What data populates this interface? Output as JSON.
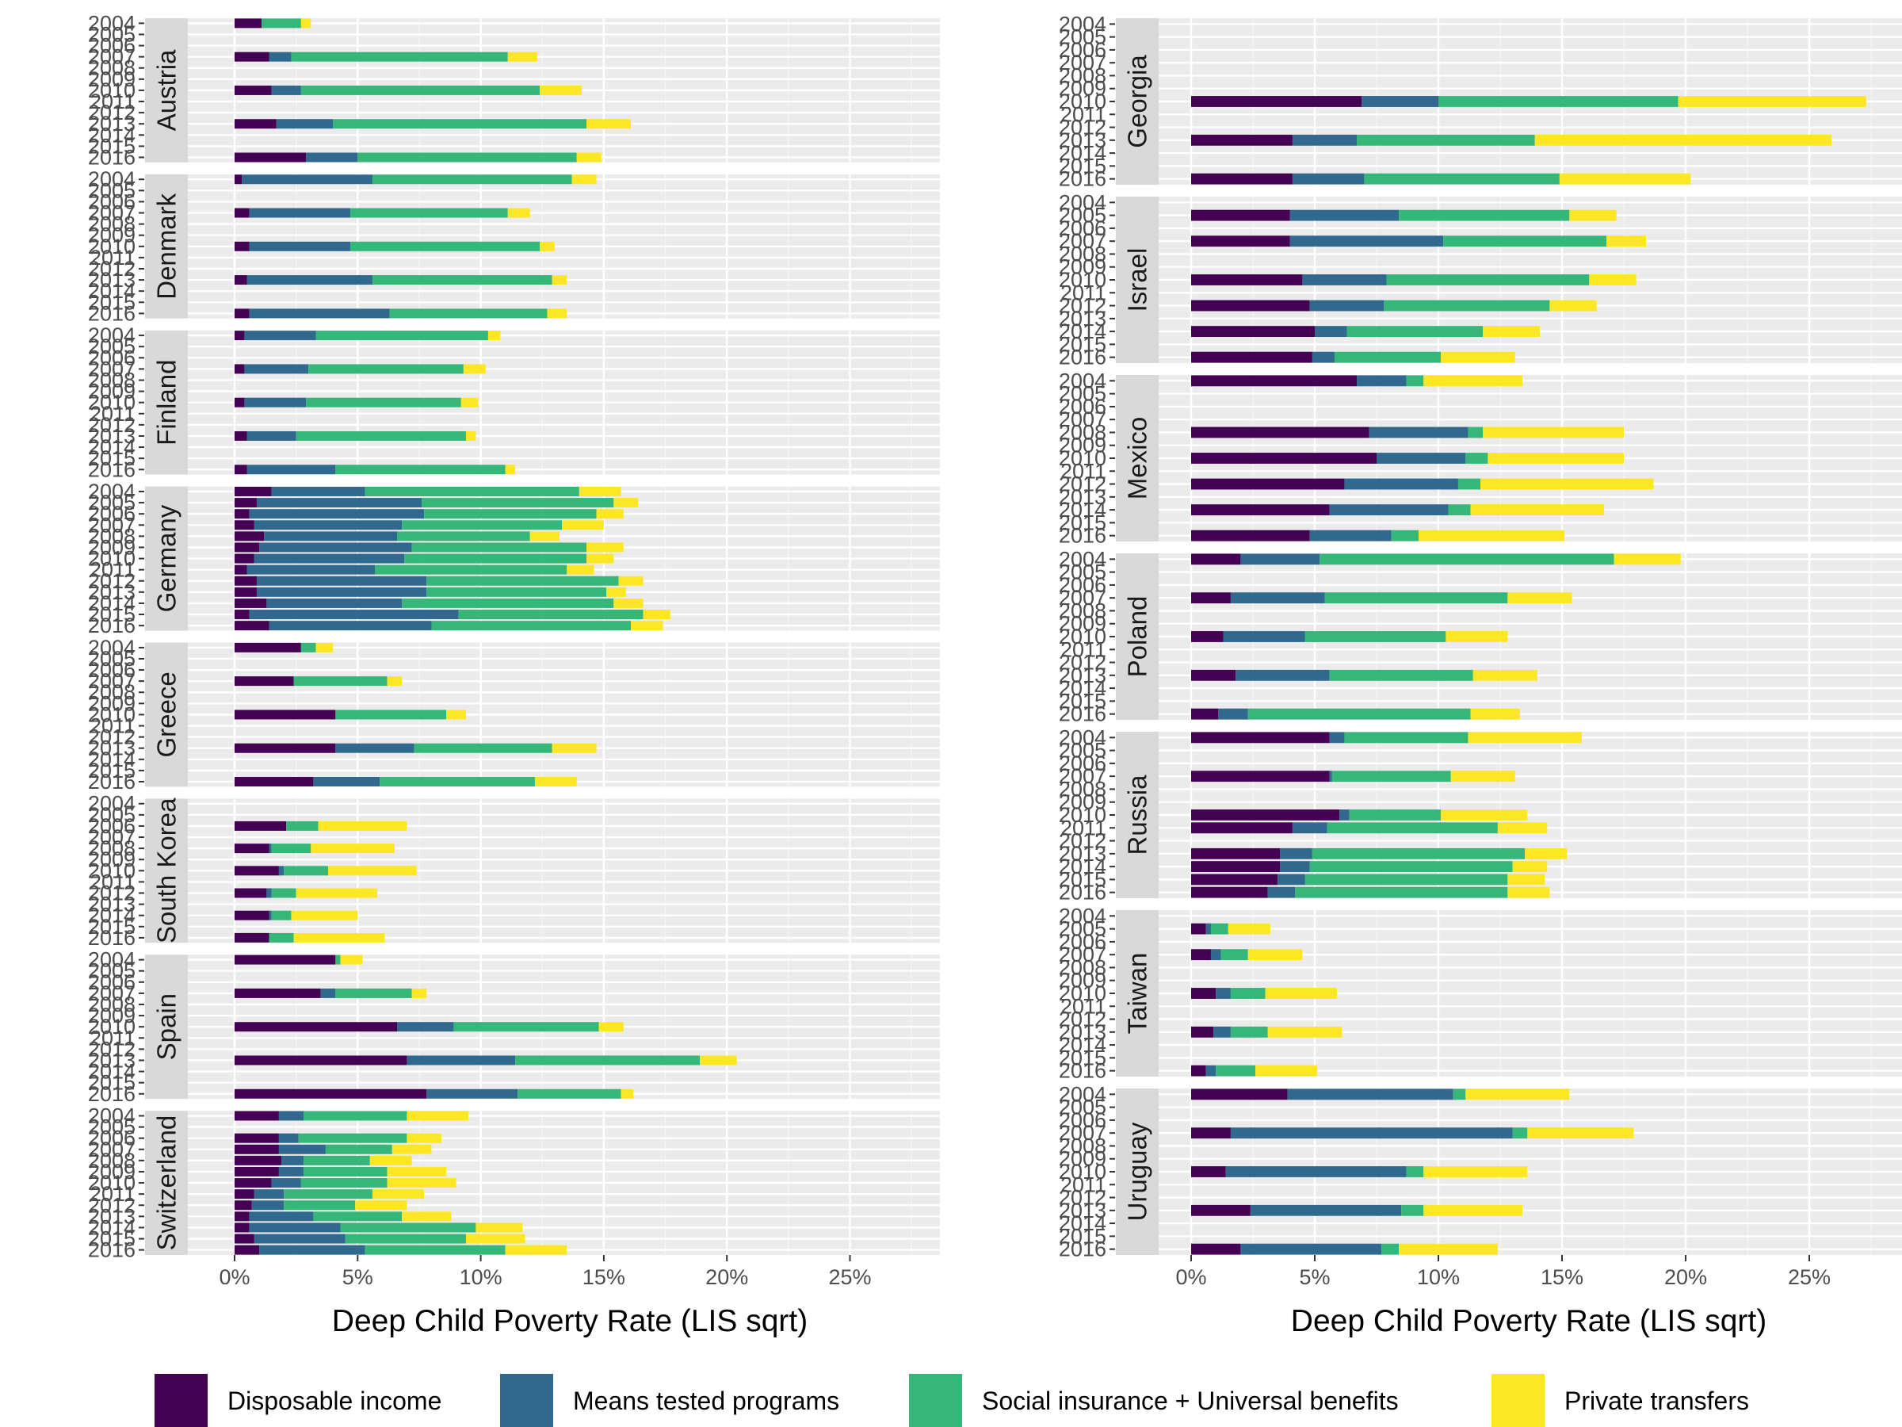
{
  "chart_data": {
    "type": "bar",
    "orientation": "horizontal",
    "stacked": true,
    "xlabel": "Deep Child Poverty Rate (LIS sqrt)",
    "x_ticks": [
      "0%",
      "5%",
      "10%",
      "15%",
      "20%",
      "25%"
    ],
    "xlim": [
      0,
      28.5
    ],
    "y_year_range": [
      2004,
      2016
    ],
    "grid": true,
    "legend_position": "bottom",
    "components": [
      {
        "name": "Disposable income",
        "color": "#440154"
      },
      {
        "name": "Means tested programs",
        "color": "#31688E"
      },
      {
        "name": "Social insurance + Universal benefits",
        "color": "#35B779"
      },
      {
        "name": "Private transfers",
        "color": "#FDE725"
      }
    ],
    "facets": [
      {
        "country": "Austria",
        "panel": "left",
        "bars": [
          {
            "year": 2004,
            "values": [
              1.1,
              0.0,
              1.6,
              0.4
            ]
          },
          {
            "year": 2007,
            "values": [
              1.4,
              0.9,
              8.8,
              1.2
            ]
          },
          {
            "year": 2010,
            "values": [
              1.5,
              1.2,
              9.7,
              1.7
            ]
          },
          {
            "year": 2013,
            "values": [
              1.7,
              2.3,
              10.3,
              1.8
            ]
          },
          {
            "year": 2016,
            "values": [
              2.9,
              2.1,
              8.9,
              1.0
            ]
          }
        ]
      },
      {
        "country": "Denmark",
        "panel": "left",
        "bars": [
          {
            "year": 2004,
            "values": [
              0.3,
              5.3,
              8.1,
              1.0
            ]
          },
          {
            "year": 2007,
            "values": [
              0.6,
              4.1,
              6.4,
              0.9
            ]
          },
          {
            "year": 2010,
            "values": [
              0.6,
              4.1,
              7.7,
              0.6
            ]
          },
          {
            "year": 2013,
            "values": [
              0.5,
              5.1,
              7.3,
              0.6
            ]
          },
          {
            "year": 2016,
            "values": [
              0.6,
              5.7,
              6.4,
              0.8
            ]
          }
        ]
      },
      {
        "country": "Finland",
        "panel": "left",
        "bars": [
          {
            "year": 2004,
            "values": [
              0.4,
              2.9,
              7.0,
              0.5
            ]
          },
          {
            "year": 2007,
            "values": [
              0.4,
              2.6,
              6.3,
              0.9
            ]
          },
          {
            "year": 2010,
            "values": [
              0.4,
              2.5,
              6.3,
              0.7
            ]
          },
          {
            "year": 2013,
            "values": [
              0.5,
              2.0,
              6.9,
              0.4
            ]
          },
          {
            "year": 2016,
            "values": [
              0.5,
              3.6,
              6.9,
              0.4
            ]
          }
        ]
      },
      {
        "country": "Germany",
        "panel": "left",
        "bars": [
          {
            "year": 2004,
            "values": [
              1.5,
              3.8,
              8.7,
              1.7
            ]
          },
          {
            "year": 2005,
            "values": [
              0.9,
              6.7,
              7.8,
              1.0
            ]
          },
          {
            "year": 2006,
            "values": [
              0.6,
              7.1,
              7.0,
              1.1
            ]
          },
          {
            "year": 2007,
            "values": [
              0.8,
              6.0,
              6.5,
              1.7
            ]
          },
          {
            "year": 2008,
            "values": [
              1.2,
              5.4,
              5.4,
              1.2
            ]
          },
          {
            "year": 2009,
            "values": [
              1.0,
              6.2,
              7.1,
              1.5
            ]
          },
          {
            "year": 2010,
            "values": [
              0.8,
              6.1,
              7.4,
              1.1
            ]
          },
          {
            "year": 2011,
            "values": [
              0.5,
              5.2,
              7.8,
              1.1
            ]
          },
          {
            "year": 2012,
            "values": [
              0.9,
              6.9,
              7.8,
              1.0
            ]
          },
          {
            "year": 2013,
            "values": [
              0.9,
              6.9,
              7.3,
              0.8
            ]
          },
          {
            "year": 2014,
            "values": [
              1.3,
              5.5,
              8.6,
              1.2
            ]
          },
          {
            "year": 2015,
            "values": [
              0.6,
              8.5,
              7.5,
              1.1
            ]
          },
          {
            "year": 2016,
            "values": [
              1.4,
              6.6,
              8.1,
              1.3
            ]
          }
        ]
      },
      {
        "country": "Greece",
        "panel": "left",
        "bars": [
          {
            "year": 2004,
            "values": [
              2.7,
              0.0,
              0.6,
              0.7
            ]
          },
          {
            "year": 2007,
            "values": [
              2.4,
              0.0,
              3.8,
              0.6
            ]
          },
          {
            "year": 2010,
            "values": [
              4.1,
              0.0,
              4.5,
              0.8
            ]
          },
          {
            "year": 2013,
            "values": [
              4.1,
              3.2,
              5.6,
              1.8
            ]
          },
          {
            "year": 2016,
            "values": [
              3.2,
              2.7,
              6.3,
              1.7
            ]
          }
        ]
      },
      {
        "country": "South Korea",
        "panel": "left",
        "bars": [
          {
            "year": 2006,
            "values": [
              2.1,
              0.0,
              1.3,
              3.6
            ]
          },
          {
            "year": 2008,
            "values": [
              1.4,
              0.1,
              1.6,
              3.4
            ]
          },
          {
            "year": 2010,
            "values": [
              1.8,
              0.2,
              1.8,
              3.6
            ]
          },
          {
            "year": 2012,
            "values": [
              1.3,
              0.2,
              1.0,
              3.3
            ]
          },
          {
            "year": 2014,
            "values": [
              1.4,
              0.1,
              0.8,
              2.7
            ]
          },
          {
            "year": 2016,
            "values": [
              1.4,
              0.0,
              1.0,
              3.7
            ]
          }
        ]
      },
      {
        "country": "Spain",
        "panel": "left",
        "bars": [
          {
            "year": 2004,
            "values": [
              4.1,
              0.0,
              0.2,
              0.9
            ]
          },
          {
            "year": 2007,
            "values": [
              3.5,
              0.6,
              3.1,
              0.6
            ]
          },
          {
            "year": 2010,
            "values": [
              6.6,
              2.3,
              5.9,
              1.0
            ]
          },
          {
            "year": 2013,
            "values": [
              7.0,
              4.4,
              7.5,
              1.5
            ]
          },
          {
            "year": 2016,
            "values": [
              7.8,
              3.7,
              4.2,
              0.5
            ]
          }
        ]
      },
      {
        "country": "Switzerland",
        "panel": "left",
        "bars": [
          {
            "year": 2004,
            "values": [
              1.8,
              1.0,
              4.2,
              2.5
            ]
          },
          {
            "year": 2006,
            "values": [
              1.8,
              0.8,
              4.4,
              1.4
            ]
          },
          {
            "year": 2007,
            "values": [
              1.8,
              1.9,
              2.7,
              1.6
            ]
          },
          {
            "year": 2008,
            "values": [
              1.9,
              0.9,
              2.7,
              1.7
            ]
          },
          {
            "year": 2009,
            "values": [
              1.8,
              1.0,
              3.4,
              2.4
            ]
          },
          {
            "year": 2010,
            "values": [
              1.5,
              1.2,
              3.5,
              2.8
            ]
          },
          {
            "year": 2011,
            "values": [
              0.8,
              1.2,
              3.6,
              2.1
            ]
          },
          {
            "year": 2012,
            "values": [
              0.7,
              1.3,
              2.9,
              2.1
            ]
          },
          {
            "year": 2013,
            "values": [
              0.6,
              2.6,
              3.6,
              2.0
            ]
          },
          {
            "year": 2014,
            "values": [
              0.6,
              3.7,
              5.5,
              1.9
            ]
          },
          {
            "year": 2015,
            "values": [
              0.8,
              3.7,
              4.9,
              2.4
            ]
          },
          {
            "year": 2016,
            "values": [
              1.0,
              4.3,
              5.7,
              2.5
            ]
          }
        ]
      },
      {
        "country": "Georgia",
        "panel": "right",
        "bars": [
          {
            "year": 2010,
            "values": [
              6.9,
              3.1,
              9.7,
              7.6
            ]
          },
          {
            "year": 2013,
            "values": [
              4.1,
              2.6,
              7.2,
              12.0
            ]
          },
          {
            "year": 2016,
            "values": [
              4.1,
              2.9,
              7.9,
              5.3
            ]
          }
        ]
      },
      {
        "country": "Israel",
        "panel": "right",
        "bars": [
          {
            "year": 2005,
            "values": [
              4.0,
              4.4,
              6.9,
              1.9
            ]
          },
          {
            "year": 2007,
            "values": [
              4.0,
              6.2,
              6.6,
              1.6
            ]
          },
          {
            "year": 2010,
            "values": [
              4.5,
              3.4,
              8.2,
              1.9
            ]
          },
          {
            "year": 2012,
            "values": [
              4.8,
              3.0,
              6.7,
              1.9
            ]
          },
          {
            "year": 2014,
            "values": [
              5.0,
              1.3,
              5.5,
              2.3
            ]
          },
          {
            "year": 2016,
            "values": [
              4.9,
              0.9,
              4.3,
              3.0
            ]
          }
        ]
      },
      {
        "country": "Mexico",
        "panel": "right",
        "bars": [
          {
            "year": 2004,
            "values": [
              6.7,
              2.0,
              0.7,
              4.0
            ]
          },
          {
            "year": 2008,
            "values": [
              7.2,
              4.0,
              0.6,
              5.7
            ]
          },
          {
            "year": 2010,
            "values": [
              7.5,
              3.6,
              0.9,
              5.5
            ]
          },
          {
            "year": 2012,
            "values": [
              6.2,
              4.6,
              0.9,
              7.0
            ]
          },
          {
            "year": 2014,
            "values": [
              5.6,
              4.8,
              0.9,
              5.4
            ]
          },
          {
            "year": 2016,
            "values": [
              4.8,
              3.3,
              1.1,
              5.9
            ]
          }
        ]
      },
      {
        "country": "Poland",
        "panel": "right",
        "bars": [
          {
            "year": 2004,
            "values": [
              2.0,
              3.2,
              11.9,
              2.7
            ]
          },
          {
            "year": 2007,
            "values": [
              1.6,
              3.8,
              7.4,
              2.6
            ]
          },
          {
            "year": 2010,
            "values": [
              1.3,
              3.3,
              5.7,
              2.5
            ]
          },
          {
            "year": 2013,
            "values": [
              1.8,
              3.8,
              5.8,
              2.6
            ]
          },
          {
            "year": 2016,
            "values": [
              1.1,
              1.2,
              9.0,
              2.0
            ]
          }
        ]
      },
      {
        "country": "Russia",
        "panel": "right",
        "bars": [
          {
            "year": 2004,
            "values": [
              5.6,
              0.6,
              5.0,
              4.6
            ]
          },
          {
            "year": 2007,
            "values": [
              5.6,
              0.1,
              4.8,
              2.6
            ]
          },
          {
            "year": 2010,
            "values": [
              6.0,
              0.4,
              3.7,
              3.5
            ]
          },
          {
            "year": 2011,
            "values": [
              4.1,
              1.4,
              6.9,
              2.0
            ]
          },
          {
            "year": 2013,
            "values": [
              3.6,
              1.3,
              8.6,
              1.7
            ]
          },
          {
            "year": 2014,
            "values": [
              3.6,
              1.2,
              8.2,
              1.4
            ]
          },
          {
            "year": 2015,
            "values": [
              3.5,
              1.1,
              8.2,
              1.5
            ]
          },
          {
            "year": 2016,
            "values": [
              3.1,
              1.1,
              8.6,
              1.7
            ]
          }
        ]
      },
      {
        "country": "Taiwan",
        "panel": "right",
        "bars": [
          {
            "year": 2005,
            "values": [
              0.6,
              0.2,
              0.7,
              1.7
            ]
          },
          {
            "year": 2007,
            "values": [
              0.8,
              0.4,
              1.1,
              2.2
            ]
          },
          {
            "year": 2010,
            "values": [
              1.0,
              0.6,
              1.4,
              2.9
            ]
          },
          {
            "year": 2013,
            "values": [
              0.9,
              0.7,
              1.5,
              3.0
            ]
          },
          {
            "year": 2016,
            "values": [
              0.6,
              0.4,
              1.6,
              2.5
            ]
          }
        ]
      },
      {
        "country": "Uruguay",
        "panel": "right",
        "bars": [
          {
            "year": 2004,
            "values": [
              3.9,
              6.7,
              0.5,
              4.2
            ]
          },
          {
            "year": 2007,
            "values": [
              1.6,
              11.4,
              0.6,
              4.3
            ]
          },
          {
            "year": 2010,
            "values": [
              1.4,
              7.3,
              0.7,
              4.2
            ]
          },
          {
            "year": 2013,
            "values": [
              2.4,
              6.1,
              0.9,
              4.0
            ]
          },
          {
            "year": 2016,
            "values": [
              2.0,
              5.7,
              0.7,
              4.0
            ]
          }
        ]
      }
    ]
  }
}
